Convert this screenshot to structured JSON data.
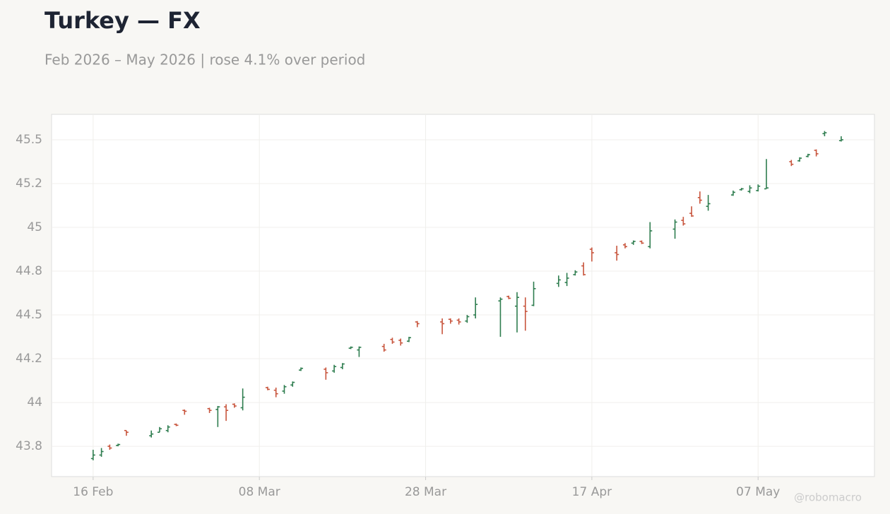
{
  "chart_data": {
    "type": "ohlc",
    "title": "Turkey — FX",
    "subtitle": "Feb 2026 – May 2026 | rose 4.1% over period",
    "watermark": "@robomacro",
    "up_color": "#2e7d4f",
    "down_color": "#c8553d",
    "grid": true,
    "x": [
      "16 Feb",
      "17 Feb",
      "18 Feb",
      "19 Feb",
      "20 Feb",
      "23 Feb",
      "24 Feb",
      "25 Feb",
      "26 Feb",
      "27 Feb",
      "02 Mar",
      "03 Mar",
      "04 Mar",
      "05 Mar",
      "06 Mar",
      "09 Mar",
      "10 Mar",
      "11 Mar",
      "12 Mar",
      "13 Mar",
      "16 Mar",
      "17 Mar",
      "18 Mar",
      "19 Mar",
      "20 Mar",
      "23 Mar",
      "24 Mar",
      "25 Mar",
      "26 Mar",
      "27 Mar",
      "30 Mar",
      "31 Mar",
      "01 Apr",
      "02 Apr",
      "03 Apr",
      "06 Apr",
      "07 Apr",
      "08 Apr",
      "09 Apr",
      "10 Apr",
      "13 Apr",
      "14 Apr",
      "15 Apr",
      "16 Apr",
      "17 Apr",
      "20 Apr",
      "21 Apr",
      "22 Apr",
      "23 Apr",
      "24 Apr",
      "27 Apr",
      "28 Apr",
      "29 Apr",
      "30 Apr",
      "01 May",
      "04 May",
      "05 May",
      "06 May",
      "07 May",
      "08 May",
      "11 May",
      "12 May",
      "13 May",
      "14 May",
      "15 May",
      "17 May"
    ],
    "open": [
      43.68,
      43.7,
      43.75,
      43.755,
      43.84,
      43.81,
      43.83,
      43.84,
      43.875,
      43.955,
      43.965,
      43.96,
      43.975,
      43.99,
      43.97,
      44.085,
      44.07,
      44.065,
      44.1,
      44.185,
      44.19,
      44.18,
      44.2,
      44.31,
      44.3,
      44.32,
      44.36,
      44.355,
      44.35,
      44.46,
      44.46,
      44.475,
      44.47,
      44.465,
      44.5,
      44.58,
      44.605,
      44.55,
      44.55,
      44.555,
      44.68,
      44.685,
      44.73,
      44.78,
      44.875,
      44.855,
      44.9,
      44.91,
      44.92,
      44.89,
      44.99,
      45.04,
      45.08,
      45.17,
      45.12,
      45.185,
      45.215,
      45.205,
      45.21,
      45.22,
      45.375,
      45.38,
      45.405,
      45.44,
      45.535,
      45.495
    ],
    "high": [
      43.73,
      43.74,
      43.76,
      43.765,
      43.84,
      43.84,
      43.86,
      43.87,
      43.88,
      43.96,
      43.97,
      43.98,
      43.99,
      43.995,
      44.08,
      44.09,
      44.085,
      44.1,
      44.12,
      44.2,
      44.2,
      44.215,
      44.225,
      44.32,
      44.32,
      44.335,
      44.37,
      44.365,
      44.375,
      44.465,
      44.48,
      44.48,
      44.48,
      44.5,
      44.6,
      44.6,
      44.61,
      44.63,
      44.6,
      44.69,
      44.725,
      44.74,
      44.755,
      44.8,
      44.885,
      44.895,
      44.91,
      44.925,
      44.925,
      45.03,
      45.045,
      45.06,
      45.12,
      45.205,
      45.185,
      45.21,
      45.225,
      45.24,
      45.245,
      45.39,
      45.385,
      45.4,
      45.42,
      45.445,
      45.55,
      45.52
    ],
    "low": [
      43.67,
      43.69,
      43.73,
      43.75,
      43.81,
      43.8,
      43.83,
      43.83,
      43.865,
      43.93,
      43.94,
      43.86,
      43.895,
      43.97,
      43.955,
      44.07,
      44.03,
      44.05,
      44.09,
      44.18,
      44.13,
      44.17,
      44.19,
      44.305,
      44.26,
      44.29,
      44.335,
      44.325,
      44.345,
      44.43,
      44.39,
      44.45,
      44.445,
      44.455,
      44.48,
      44.375,
      44.59,
      44.4,
      44.41,
      44.55,
      44.66,
      44.665,
      44.725,
      44.725,
      44.805,
      44.81,
      44.88,
      44.9,
      44.905,
      44.88,
      44.935,
      45.01,
      45.06,
      45.135,
      45.095,
      45.18,
      45.21,
      45.195,
      45.205,
      45.22,
      45.35,
      45.375,
      45.4,
      45.405,
      45.52,
      45.49
    ],
    "close": [
      43.7,
      43.72,
      43.74,
      43.76,
      43.83,
      43.82,
      43.85,
      43.86,
      43.87,
      43.95,
      43.955,
      43.975,
      43.955,
      43.98,
      44.03,
      44.075,
      44.05,
      44.09,
      44.115,
      44.195,
      44.17,
      44.205,
      44.22,
      44.315,
      44.315,
      44.3,
      44.345,
      44.34,
      44.37,
      44.45,
      44.45,
      44.465,
      44.46,
      44.49,
      44.56,
      44.59,
      44.595,
      44.6,
      44.52,
      44.65,
      44.7,
      44.71,
      44.745,
      44.73,
      44.855,
      44.845,
      44.89,
      44.92,
      44.91,
      44.98,
      45.03,
      45.02,
      45.065,
      45.155,
      45.135,
      45.2,
      45.22,
      45.225,
      45.235,
      45.225,
      45.36,
      45.395,
      45.415,
      45.42,
      45.54,
      45.5
    ],
    "xlim": [
      "11 Feb",
      "21 May"
    ],
    "xticks": [
      "16 Feb",
      "08 Mar",
      "28 Mar",
      "17 Apr",
      "07 May"
    ],
    "ylim": [
      43.577,
      45.645
    ],
    "yticks": [
      {
        "value": 43.75,
        "label": "43.8"
      },
      44,
      {
        "value": 44.25,
        "label": "44.2"
      },
      44.5,
      {
        "value": 44.75,
        "label": "44.8"
      },
      45,
      {
        "value": 45.25,
        "label": "45.2"
      },
      45.5
    ]
  }
}
